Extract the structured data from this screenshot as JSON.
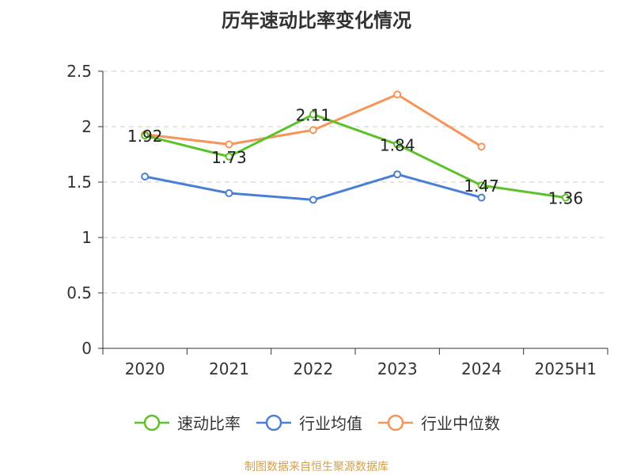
{
  "title": "历年速动比率变化情况",
  "source_note": "制图数据来自恒生聚源数据库",
  "chart_data": {
    "type": "line",
    "title": "历年速动比率变化情况",
    "categories": [
      "2020",
      "2021",
      "2022",
      "2023",
      "2024",
      "2025H1"
    ],
    "y_ticks": [
      "0",
      "0.5",
      "1",
      "1.5",
      "2",
      "2.5"
    ],
    "ylim": [
      0,
      2.5
    ],
    "grid": true,
    "legend_position": "bottom",
    "series": [
      {
        "name": "速动比率",
        "color": "#5cc12a",
        "values": [
          1.92,
          1.73,
          2.11,
          1.84,
          1.47,
          1.36
        ],
        "labels": [
          "1.92",
          "1.73",
          "2.11",
          "1.84",
          "1.47",
          "1.36"
        ],
        "show_labels": true
      },
      {
        "name": "行业均值",
        "color": "#4a7fd8",
        "values": [
          1.55,
          1.4,
          1.34,
          1.57,
          1.36,
          null
        ],
        "show_labels": false
      },
      {
        "name": "行业中位数",
        "color": "#f5955a",
        "values": [
          1.93,
          1.84,
          1.97,
          2.29,
          1.82,
          null
        ],
        "show_labels": false
      }
    ]
  }
}
